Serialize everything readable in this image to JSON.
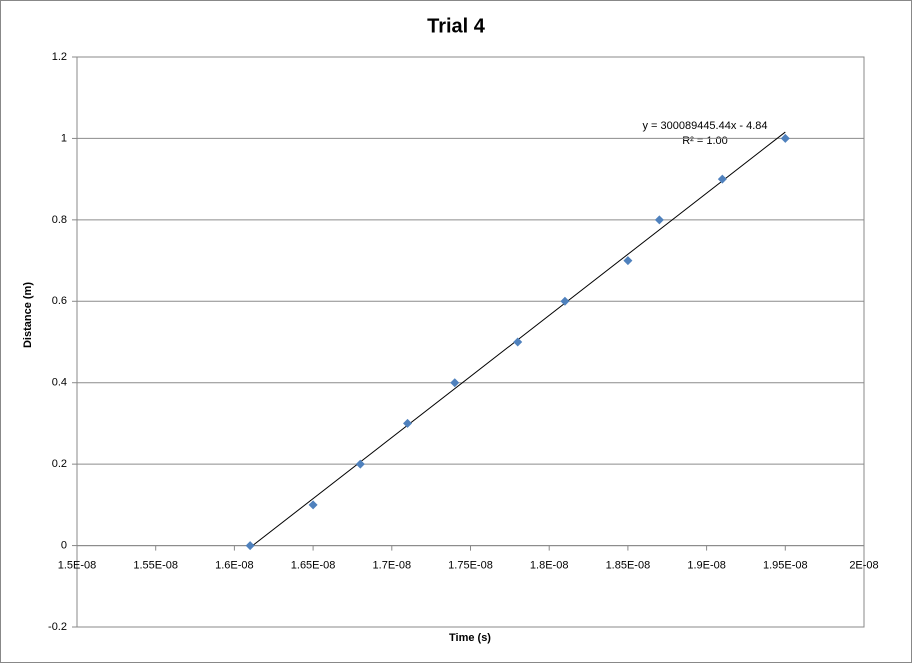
{
  "chart_data": {
    "type": "scatter",
    "title": "Trial 4",
    "x_label": "Time (s)",
    "y_label": "Distance (m)",
    "annotations": [
      "y = 300089445.44x - 4.84",
      "R² = 1.00"
    ],
    "series": [
      {
        "name": "Trial 4",
        "color": "#4f81bd",
        "x": [
          1.61e-08,
          1.65e-08,
          1.68e-08,
          1.71e-08,
          1.74e-08,
          1.78e-08,
          1.81e-08,
          1.85e-08,
          1.87e-08,
          1.91e-08,
          1.95e-08
        ],
        "values": [
          0,
          0.1,
          0.2,
          0.3,
          0.4,
          0.5,
          0.6,
          0.7,
          0.8,
          0.9,
          1
        ]
      }
    ],
    "trendline": true,
    "xlim": [
      1.5e-08,
      2e-08
    ],
    "xticks": [
      {
        "value": 1.5e-08,
        "label": "1.5E-08"
      },
      {
        "value": 1.55e-08,
        "label": "1.55E-08"
      },
      {
        "value": 1.6e-08,
        "label": "1.6E-08"
      },
      {
        "value": 1.65e-08,
        "label": "1.65E-08"
      },
      {
        "value": 1.7e-08,
        "label": "1.7E-08"
      },
      {
        "value": 1.75e-08,
        "label": "1.75E-08"
      },
      {
        "value": 1.8e-08,
        "label": "1.8E-08"
      },
      {
        "value": 1.85e-08,
        "label": "1.85E-08"
      },
      {
        "value": 1.9e-08,
        "label": "1.9E-08"
      },
      {
        "value": 1.95e-08,
        "label": "1.95E-08"
      },
      {
        "value": 2e-08,
        "label": "2E-08"
      }
    ],
    "ylim": [
      -0.2,
      1.2
    ],
    "yticks": [
      -0.2,
      0,
      0.2,
      0.4,
      0.6,
      0.8,
      1,
      1.2
    ],
    "grid": true
  }
}
